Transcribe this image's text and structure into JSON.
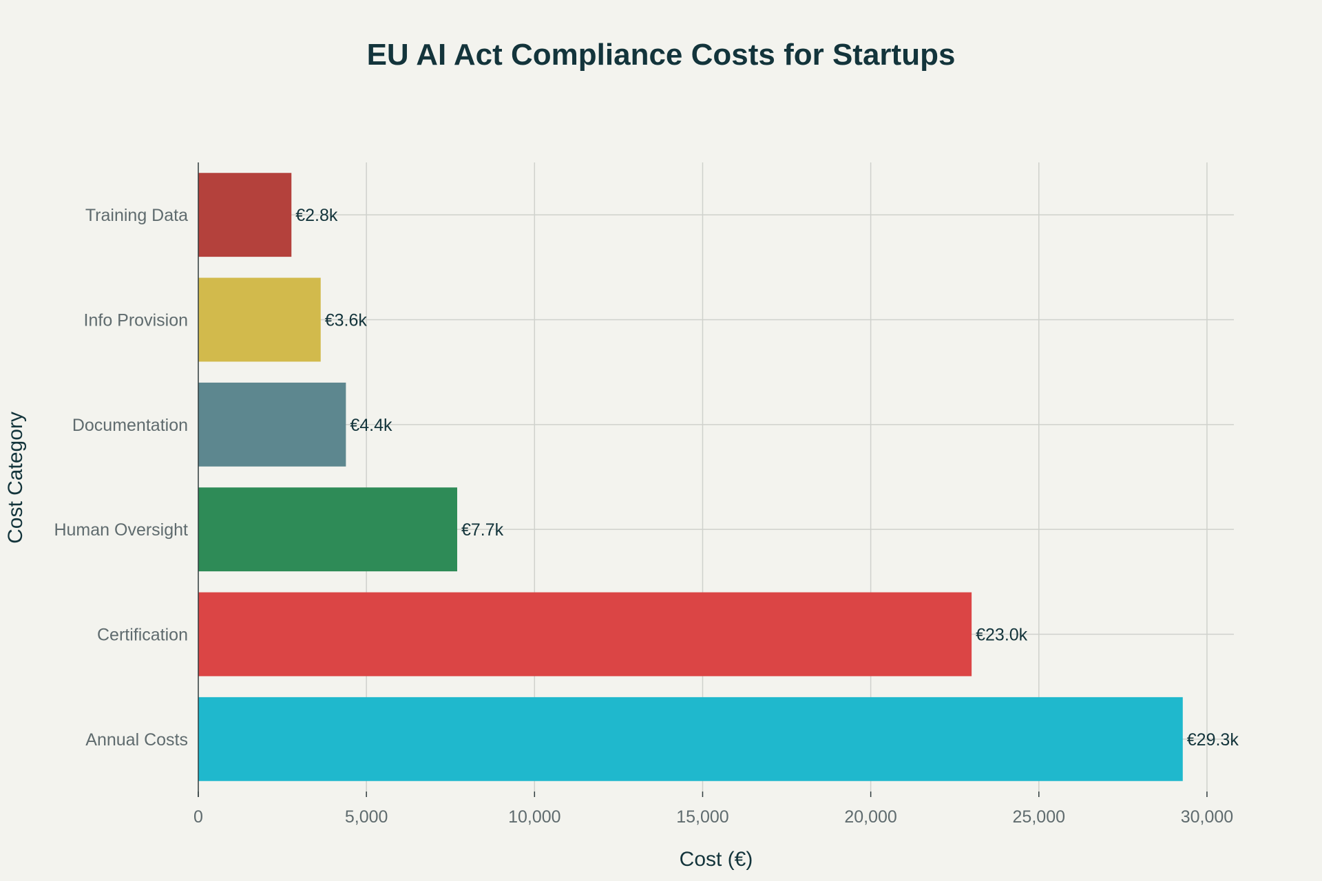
{
  "chart_data": {
    "type": "bar",
    "orientation": "horizontal",
    "title": "EU AI Act Compliance Costs for Startups",
    "xlabel": "Cost (€)",
    "ylabel": "Cost Category",
    "xlim": [
      0,
      30800
    ],
    "xticks": [
      0,
      5000,
      10000,
      15000,
      20000,
      25000,
      30000
    ],
    "xtick_labels": [
      "0",
      "5,000",
      "10,000",
      "15,000",
      "20,000",
      "25,000",
      "30,000"
    ],
    "grid": true,
    "categories": [
      "Training Data",
      "Info Provision",
      "Documentation",
      "Human Oversight",
      "Certification",
      "Annual Costs"
    ],
    "values": [
      2770,
      3640,
      4390,
      7700,
      23000,
      29280
    ],
    "data_labels": [
      "€2.8k",
      "€3.6k",
      "€4.4k",
      "€7.7k",
      "€23.0k",
      "€29.3k"
    ],
    "colors": [
      "#B4413C",
      "#D2BA4C",
      "#5D878F",
      "#2E8B57",
      "#DB4545",
      "#1FB8CD"
    ]
  }
}
